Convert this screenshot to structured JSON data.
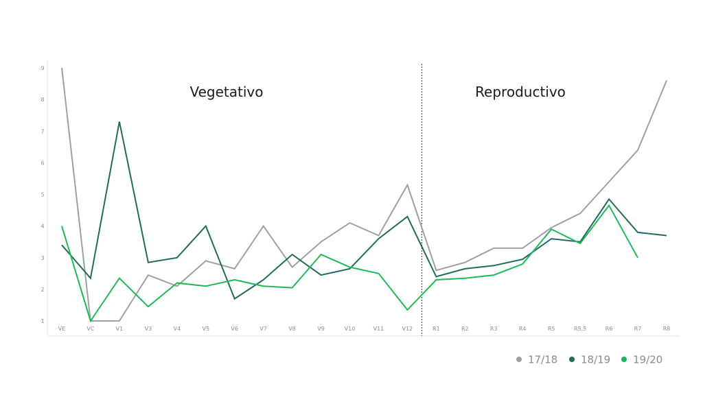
{
  "chart_data": {
    "type": "line",
    "categories": [
      "VE",
      "VC",
      "V1",
      "V3",
      "V4",
      "V5",
      "V6",
      "V7",
      "V8",
      "V9",
      "V10",
      "V11",
      "V12",
      "R1",
      "R2",
      "R3",
      "R4",
      "R5",
      "R5.5",
      "R6",
      "R7",
      "R8"
    ],
    "ylim": [
      1,
      9
    ],
    "yticks": [
      "1",
      "2",
      "3",
      "4",
      "5",
      "6",
      "7",
      "8",
      "9"
    ],
    "grid": false,
    "legend_position": "bottom-right",
    "annotations": [
      {
        "text": "Vegetativo"
      },
      {
        "text": "Reproductivo"
      }
    ],
    "divider_between": [
      "V12",
      "R1"
    ],
    "series": [
      {
        "name": "17/18",
        "color": "#a0a0a0",
        "values": [
          9.0,
          1.0,
          1.0,
          2.45,
          2.1,
          2.9,
          2.65,
          4.0,
          2.7,
          3.5,
          4.1,
          3.7,
          5.3,
          2.6,
          2.85,
          3.3,
          3.3,
          3.95,
          4.4,
          5.4,
          6.4,
          8.6
        ]
      },
      {
        "name": "18/19",
        "color": "#1e6b5c",
        "values": [
          3.4,
          2.35,
          7.3,
          2.85,
          3.0,
          4.0,
          1.7,
          2.3,
          3.1,
          2.45,
          2.65,
          3.6,
          4.3,
          2.4,
          2.65,
          2.75,
          2.95,
          3.6,
          3.5,
          4.85,
          3.8,
          3.7
        ]
      },
      {
        "name": "19/20",
        "color": "#1db954",
        "values": [
          4.0,
          1.0,
          2.35,
          1.45,
          2.2,
          2.1,
          2.3,
          2.1,
          2.05,
          3.1,
          2.7,
          2.5,
          1.35,
          2.3,
          2.35,
          2.45,
          2.8,
          3.9,
          3.45,
          4.65,
          3.0,
          null
        ]
      }
    ]
  }
}
